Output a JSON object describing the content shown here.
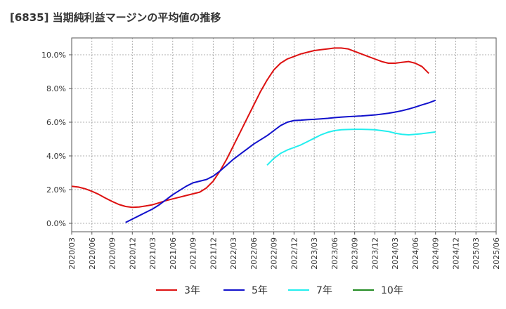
{
  "chart_data": {
    "type": "line",
    "title": "[6835]  当期純利益マージンの平均値の推移",
    "xlabel": "",
    "ylabel": "",
    "ylim": [
      -0.5,
      11.0
    ],
    "y_ticks": [
      0.0,
      2.0,
      4.0,
      6.0,
      8.0,
      10.0
    ],
    "y_tick_labels": [
      "0.0%",
      "2.0%",
      "4.0%",
      "6.0%",
      "8.0%",
      "10.0%"
    ],
    "x_tick_labels": [
      "2020/03",
      "2020/06",
      "2020/09",
      "2020/12",
      "2021/03",
      "2021/06",
      "2021/09",
      "2021/12",
      "2022/03",
      "2022/06",
      "2022/09",
      "2022/12",
      "2023/03",
      "2023/06",
      "2023/09",
      "2023/12",
      "2024/03",
      "2024/06",
      "2024/09",
      "2024/12",
      "2025/03",
      "2025/06"
    ],
    "grid": true,
    "legend_position": "bottom",
    "series": [
      {
        "name": "3年",
        "color": "#dd1111",
        "start_index": 0,
        "values": [
          2.2,
          2.15,
          2.05,
          1.9,
          1.72,
          1.5,
          1.3,
          1.12,
          1.0,
          0.95,
          0.97,
          1.03,
          1.1,
          1.22,
          1.35,
          1.45,
          1.55,
          1.65,
          1.75,
          1.85,
          2.1,
          2.5,
          3.1,
          3.8,
          4.6,
          5.4,
          6.2,
          7.0,
          7.8,
          8.5,
          9.1,
          9.5,
          9.75,
          9.9,
          10.05,
          10.15,
          10.25,
          10.3,
          10.35,
          10.4,
          10.4,
          10.35,
          10.2,
          10.05,
          9.9,
          9.75,
          9.6,
          9.5,
          9.5,
          9.55,
          9.6,
          9.5,
          9.3,
          8.9
        ]
      },
      {
        "name": "5年",
        "color": "#1111cc",
        "start_index": 8,
        "values": [
          0.05,
          0.25,
          0.45,
          0.65,
          0.85,
          1.1,
          1.4,
          1.7,
          1.95,
          2.2,
          2.4,
          2.5,
          2.6,
          2.8,
          3.1,
          3.45,
          3.8,
          4.1,
          4.4,
          4.7,
          4.95,
          5.2,
          5.5,
          5.8,
          6.0,
          6.1,
          6.12,
          6.15,
          6.17,
          6.2,
          6.23,
          6.27,
          6.3,
          6.33,
          6.35,
          6.37,
          6.4,
          6.43,
          6.48,
          6.53,
          6.6,
          6.68,
          6.78,
          6.9,
          7.03,
          7.15,
          7.3
        ]
      },
      {
        "name": "7年",
        "color": "#22eeee",
        "start_index": 29,
        "values": [
          3.45,
          3.85,
          4.15,
          4.35,
          4.5,
          4.65,
          4.85,
          5.05,
          5.25,
          5.4,
          5.5,
          5.55,
          5.57,
          5.58,
          5.58,
          5.57,
          5.55,
          5.5,
          5.45,
          5.35,
          5.28,
          5.25,
          5.28,
          5.32,
          5.37,
          5.42
        ]
      },
      {
        "name": "10年",
        "color": "#228b22",
        "start_index": 0,
        "values": []
      }
    ]
  }
}
